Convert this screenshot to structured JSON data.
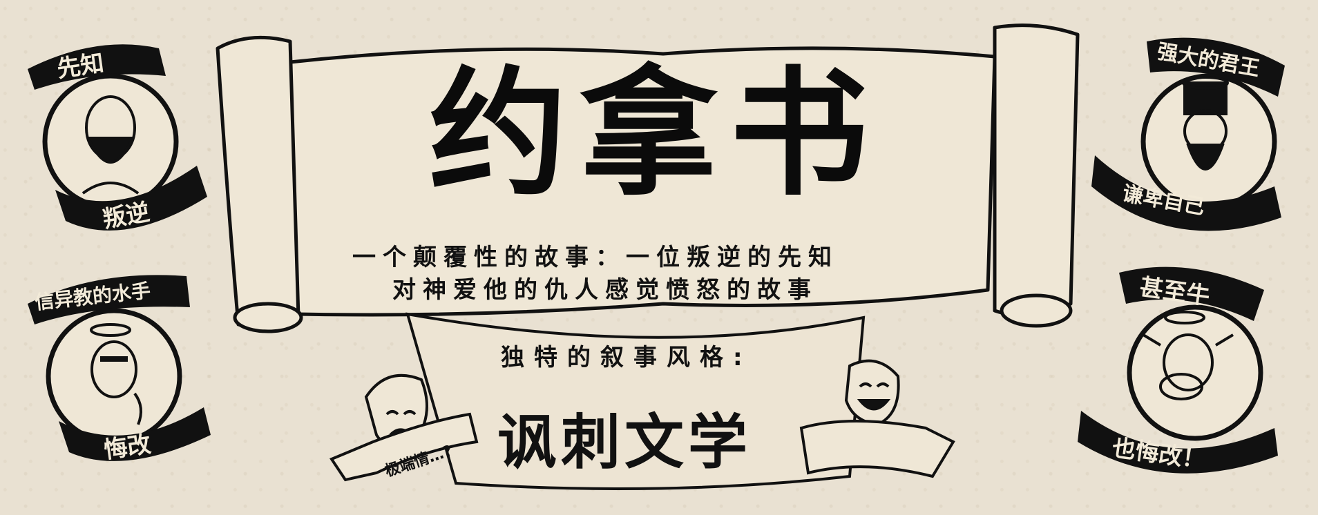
{
  "title": "约拿书",
  "subtitle_line1": "一个颠覆性的故事：一位叛逆的先知",
  "subtitle_line2": "对神爱他的仇人感觉愤怒的故事",
  "narrative_label": "独特的叙事风格:",
  "narrative_style": "讽刺文学",
  "mask_ribbon": "极端情…?",
  "badges": {
    "prophet": {
      "top": "先知",
      "bottom": "叛逆",
      "icon": "bearded-prophet"
    },
    "sailors": {
      "top": "信异教的水手",
      "bottom": "悔改",
      "icon": "praying-sailor"
    },
    "king": {
      "top": "强大的君王",
      "bottom": "谦卑自己",
      "icon": "crowned-king"
    },
    "cow": {
      "top": "甚至牛",
      "bottom": "也悔改！",
      "icon": "cow-with-halo"
    }
  },
  "colors": {
    "paper": "#e9e1d2",
    "ink": "#0b0b0b",
    "light": "#f2ead8"
  }
}
